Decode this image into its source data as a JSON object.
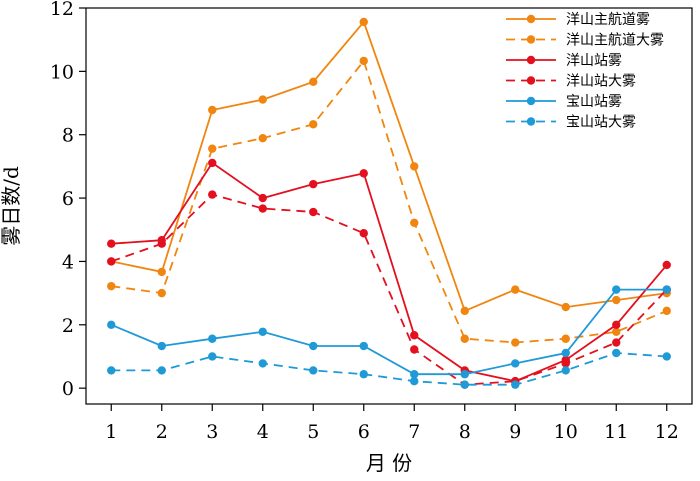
{
  "chart_data": {
    "type": "line",
    "xlabel": "月 份",
    "ylabel": "雾日数/d",
    "xlim": [
      0.5,
      12.5
    ],
    "ylim": [
      -0.5,
      12
    ],
    "x_ticks": [
      1,
      2,
      3,
      4,
      5,
      6,
      7,
      8,
      9,
      10,
      11,
      12
    ],
    "y_ticks": [
      0,
      2,
      4,
      6,
      8,
      10,
      12
    ],
    "grid": false,
    "legend_position": "top-right",
    "x": [
      1,
      2,
      3,
      4,
      5,
      6,
      7,
      8,
      9,
      10,
      11,
      12
    ],
    "series": [
      {
        "name": "洋山主航道雾",
        "color": "#f0860f",
        "dash": "solid",
        "values": [
          4.0,
          3.67,
          8.78,
          9.11,
          9.67,
          11.56,
          7.0,
          2.44,
          3.11,
          2.56,
          2.78,
          3.0
        ]
      },
      {
        "name": "洋山主航道大雾",
        "color": "#f0860f",
        "dash": "dashed",
        "values": [
          3.22,
          3.0,
          7.56,
          7.89,
          8.33,
          10.33,
          5.22,
          1.56,
          1.44,
          1.56,
          1.78,
          2.44
        ]
      },
      {
        "name": "洋山站雾",
        "color": "#e3101f",
        "dash": "solid",
        "values": [
          4.56,
          4.67,
          7.11,
          6.0,
          6.44,
          6.78,
          1.67,
          0.56,
          0.22,
          0.89,
          2.0,
          3.89
        ]
      },
      {
        "name": "洋山站大雾",
        "color": "#e3101f",
        "dash": "dashed",
        "values": [
          4.0,
          4.56,
          6.11,
          5.67,
          5.56,
          4.89,
          1.22,
          0.11,
          0.22,
          0.78,
          1.44,
          3.11
        ]
      },
      {
        "name": "宝山站雾",
        "color": "#1f9ad6",
        "dash": "solid",
        "values": [
          2.0,
          1.33,
          1.56,
          1.78,
          1.33,
          1.33,
          0.44,
          0.44,
          0.78,
          1.11,
          3.11,
          3.11
        ]
      },
      {
        "name": "宝山站大雾",
        "color": "#1f9ad6",
        "dash": "dashed",
        "values": [
          0.56,
          0.56,
          1.0,
          0.78,
          0.56,
          0.44,
          0.22,
          0.11,
          0.11,
          0.56,
          1.11,
          1.0
        ]
      }
    ]
  }
}
